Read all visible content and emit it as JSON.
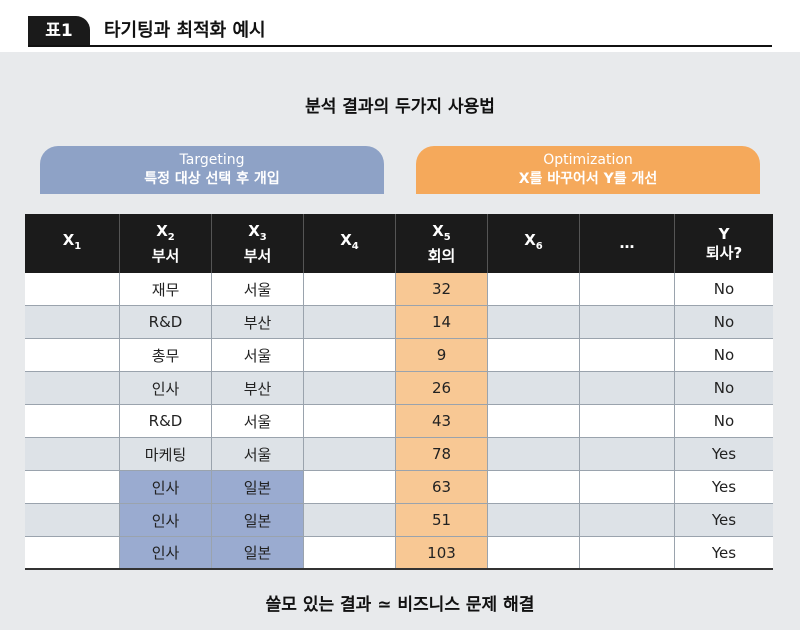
{
  "header": {
    "badge": "표1",
    "title": "타기팅과 최적화 예시"
  },
  "analysis_title": "분석 결과의 두가지 사용법",
  "targeting": {
    "line1": "Targeting",
    "line2": "특정 대상 선택 후 개입"
  },
  "optimization": {
    "line1": "Optimization",
    "line2": "X를 바꾸어서 Y를 개선"
  },
  "table": {
    "headers": [
      {
        "main": "X",
        "sub": "1",
        "second": ""
      },
      {
        "main": "X",
        "sub": "2",
        "second": "부서"
      },
      {
        "main": "X",
        "sub": "3",
        "second": "부서"
      },
      {
        "main": "X",
        "sub": "4",
        "second": ""
      },
      {
        "main": "X",
        "sub": "5",
        "second": "회의"
      },
      {
        "main": "X",
        "sub": "6",
        "second": ""
      },
      {
        "main": "…",
        "sub": "",
        "second": ""
      },
      {
        "main": "Y",
        "sub": "",
        "second": "퇴사?"
      }
    ],
    "rows": [
      [
        "",
        "재무",
        "서울",
        "",
        "32",
        "",
        "",
        "No"
      ],
      [
        "",
        "R&D",
        "부산",
        "",
        "14",
        "",
        "",
        "No"
      ],
      [
        "",
        "총무",
        "서울",
        "",
        "9",
        "",
        "",
        "No"
      ],
      [
        "",
        "인사",
        "부산",
        "",
        "26",
        "",
        "",
        "No"
      ],
      [
        "",
        "R&D",
        "서울",
        "",
        "43",
        "",
        "",
        "No"
      ],
      [
        "",
        "마케팅",
        "서울",
        "",
        "78",
        "",
        "",
        "Yes"
      ],
      [
        "",
        "인사",
        "일본",
        "",
        "63",
        "",
        "",
        "Yes"
      ],
      [
        "",
        "인사",
        "일본",
        "",
        "51",
        "",
        "",
        "Yes"
      ],
      [
        "",
        "인사",
        "일본",
        "",
        "103",
        "",
        "",
        "Yes"
      ]
    ]
  },
  "footer": "쓸모 있는 결과 ≃ 비즈니스 문제 해결",
  "colors": {
    "targeting": "#8ea2c6",
    "optimization": "#f5a95b",
    "highlight_orange": "#f8c894",
    "highlight_blue": "#9aabd0",
    "header_dark": "#1b1b1b"
  }
}
